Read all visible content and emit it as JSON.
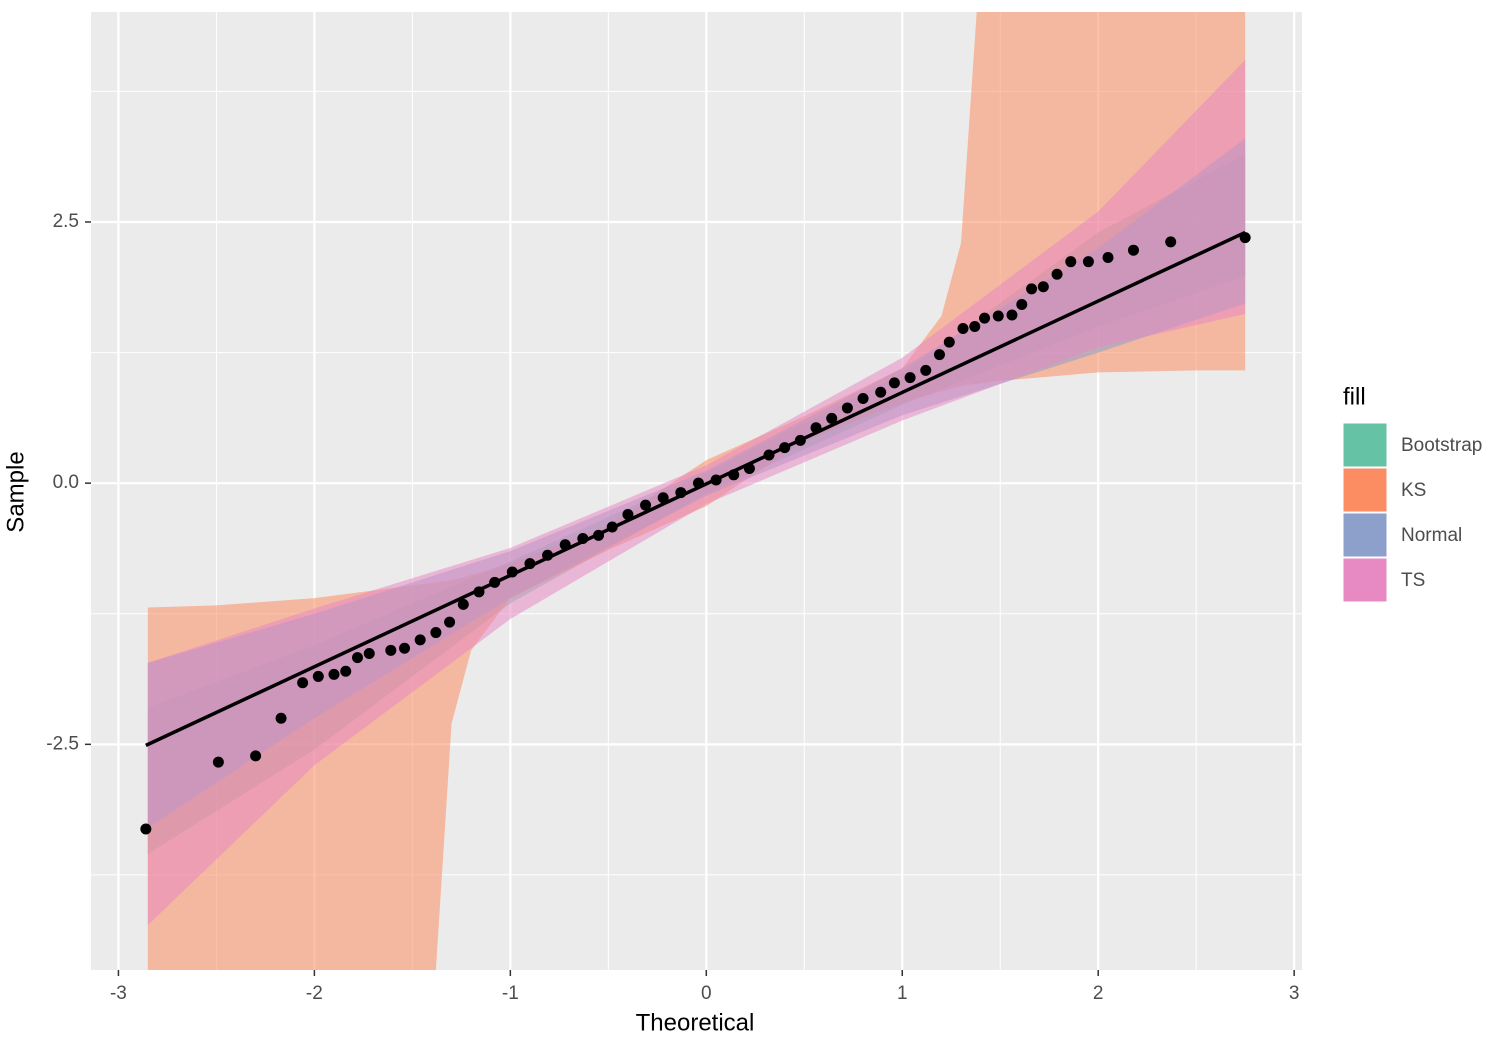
{
  "chart_data": {
    "type": "qq",
    "xlabel": "Theoretical",
    "ylabel": "Sample",
    "xlim": [
      -3.14,
      3.04
    ],
    "ylim": [
      -4.66,
      4.51
    ],
    "xticks": [
      -3,
      -2,
      -1,
      0,
      1,
      2,
      3
    ],
    "yticks": [
      -2.5,
      {
        "value": 0,
        "label": "0.0"
      },
      2.5
    ],
    "xminor": [
      -2.5,
      -1.5,
      -0.5,
      0.5,
      1.5,
      2.5
    ],
    "yminor": [
      -3.75,
      -1.25,
      1.25,
      3.75
    ],
    "grid": true,
    "legend_title": "fill",
    "bands": [
      {
        "name": "Bootstrap",
        "color": "#66c2a5",
        "x": [
          -2.85,
          -2,
          -1,
          0,
          1,
          2,
          2.75
        ],
        "lower": [
          -3.55,
          -2.55,
          -1.15,
          -0.1,
          0.75,
          1.5,
          1.98
        ],
        "upper": [
          -2.15,
          -1.55,
          -0.75,
          0.1,
          1.05,
          2.4,
          3.15
        ]
      },
      {
        "name": "KS",
        "color": "#fc8d62",
        "x": [
          -2.85,
          -2.5,
          -2,
          -1.5,
          -1.38,
          -1.3,
          -1.2,
          -1,
          -0.5,
          0,
          0.5,
          1,
          1.2,
          1.3,
          1.38,
          1.5,
          2,
          2.5,
          2.75
        ],
        "lower": [
          -4.66,
          -4.66,
          -4.66,
          -4.66,
          -4.66,
          -2.3,
          -1.6,
          -1.1,
          -0.64,
          -0.22,
          0.4,
          0.77,
          0.88,
          0.93,
          0.95,
          0.98,
          1.06,
          1.08,
          1.08
        ],
        "upper": [
          -1.19,
          -1.17,
          -1.1,
          -0.98,
          -0.95,
          -0.93,
          -0.88,
          -0.77,
          -0.4,
          0.22,
          0.64,
          1.1,
          1.6,
          2.3,
          4.51,
          4.51,
          4.51,
          4.51,
          4.51
        ]
      },
      {
        "name": "Normal",
        "color": "#8da0cb",
        "x": [
          -2.85,
          -2,
          -1,
          0,
          1,
          2,
          2.75
        ],
        "lower": [
          -3.3,
          -2.25,
          -1.1,
          -0.12,
          0.65,
          1.25,
          1.72
        ],
        "upper": [
          -1.72,
          -1.25,
          -0.65,
          0.12,
          1.1,
          2.25,
          3.3
        ]
      },
      {
        "name": "TS",
        "color": "#e78ac3",
        "x": [
          -2.85,
          -2,
          -1,
          0,
          1,
          2,
          2.75
        ],
        "lower": [
          -4.23,
          -2.7,
          -1.3,
          -0.2,
          0.6,
          1.3,
          1.62
        ],
        "upper": [
          -1.72,
          -1.2,
          -0.62,
          0.17,
          1.2,
          2.6,
          4.05
        ]
      }
    ],
    "line": {
      "color": "#000000",
      "x": [
        -2.86,
        2.75
      ],
      "y": [
        -2.51,
        2.4
      ]
    },
    "points": {
      "color": "#000000",
      "x": [
        -2.86,
        -2.49,
        -2.3,
        -2.17,
        -2.06,
        -1.98,
        -1.9,
        -1.84,
        -1.78,
        -1.72,
        -1.61,
        -1.54,
        -1.46,
        -1.38,
        -1.31,
        -1.24,
        -1.16,
        -1.08,
        -0.99,
        -0.9,
        -0.81,
        -0.72,
        -0.63,
        -0.55,
        -0.48,
        -0.4,
        -0.31,
        -0.22,
        -0.13,
        -0.04,
        0.05,
        0.14,
        0.22,
        0.32,
        0.4,
        0.48,
        0.56,
        0.64,
        0.72,
        0.8,
        0.89,
        0.96,
        1.04,
        1.12,
        1.19,
        1.24,
        1.31,
        1.37,
        1.42,
        1.49,
        1.56,
        1.61,
        1.66,
        1.72,
        1.79,
        1.86,
        1.95,
        2.05,
        2.18,
        2.37,
        2.75
      ],
      "y": [
        -3.31,
        -2.67,
        -2.61,
        -2.25,
        -1.91,
        -1.85,
        -1.83,
        -1.8,
        -1.67,
        -1.63,
        -1.6,
        -1.58,
        -1.5,
        -1.43,
        -1.33,
        -1.16,
        -1.04,
        -0.95,
        -0.85,
        -0.77,
        -0.69,
        -0.59,
        -0.53,
        -0.5,
        -0.42,
        -0.3,
        -0.21,
        -0.14,
        -0.09,
        0.0,
        0.03,
        0.08,
        0.14,
        0.27,
        0.34,
        0.41,
        0.53,
        0.62,
        0.72,
        0.81,
        0.87,
        0.96,
        1.01,
        1.08,
        1.23,
        1.35,
        1.48,
        1.5,
        1.58,
        1.6,
        1.61,
        1.71,
        1.86,
        1.88,
        2.0,
        2.12,
        2.12,
        2.16,
        2.23,
        2.31,
        2.35
      ]
    }
  }
}
